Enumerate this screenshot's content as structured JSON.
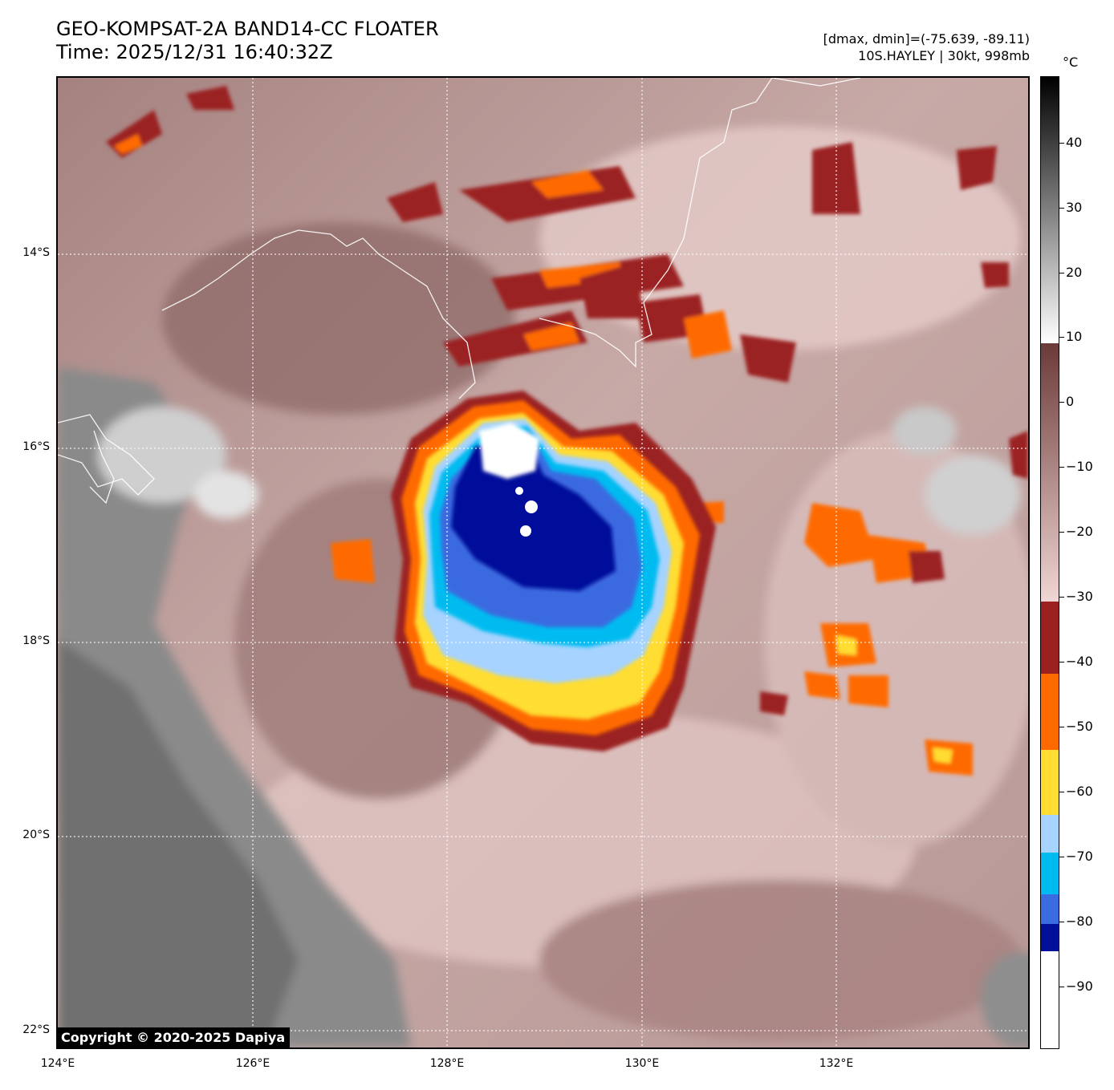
{
  "header": {
    "title": "GEO-KOMPSAT-2A BAND14-CC FLOATER",
    "time": "Time: 2025/12/31 16:40:32Z",
    "range": "[dmax, dmin]=(-75.639, -89.11)",
    "storm": "10S.HAYLEY | 30kt, 998mb"
  },
  "map": {
    "lat_labels": [
      "14°S",
      "16°S",
      "18°S",
      "20°S",
      "22°S"
    ],
    "lon_labels": [
      "124°E",
      "126°E",
      "128°E",
      "130°E",
      "132°E"
    ],
    "copyright": "Copyright © 2020-2025 Dapiya"
  },
  "colorbar": {
    "unit": "°C",
    "ticks": [
      "40",
      "30",
      "20",
      "10",
      "0",
      "−10",
      "−20",
      "−30",
      "−40",
      "−50",
      "−60",
      "−70",
      "−80",
      "−90"
    ],
    "colors": {
      "black": "#000000",
      "warm_brown": "#6b3a38",
      "pink": "#f0d6d4",
      "dark_red": "#9b2020",
      "orange": "#ff6a00",
      "yellow": "#ffdd33",
      "light_blue": "#a6d3ff",
      "cyan": "#00bbf0",
      "royal_blue": "#3b6be0",
      "navy": "#00109a",
      "white": "#ffffff"
    }
  }
}
